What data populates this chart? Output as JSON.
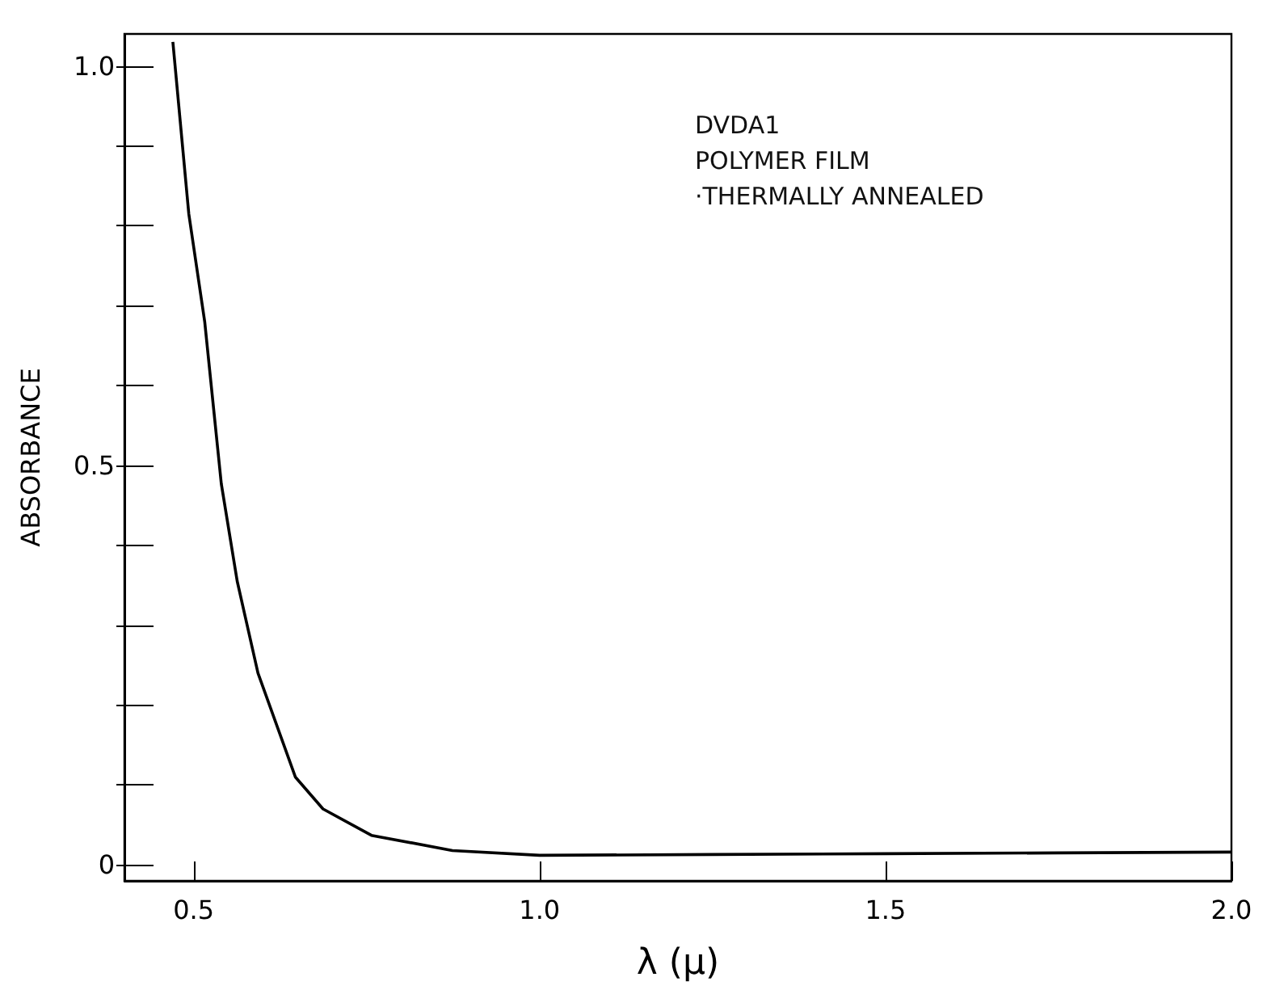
{
  "chart_data": {
    "type": "line",
    "xlabel": "λ (μ)",
    "ylabel": "ABSORBANCE",
    "annotations": [
      "DVDA1",
      "POLYMER FILM",
      "·THERMALLY ANNEALED"
    ],
    "series": [
      {
        "color": "#000000",
        "x": [
          0.47,
          0.493,
          0.516,
          0.54,
          0.563,
          0.593,
          0.647,
          0.687,
          0.757,
          0.874,
          1.0,
          1.25,
          1.5,
          1.75,
          2.0
        ],
        "values": [
          1.03,
          0.815,
          0.68,
          0.477,
          0.355,
          0.24,
          0.11,
          0.07,
          0.037,
          0.018,
          0.012,
          0.013,
          0.014,
          0.015,
          0.016
        ]
      }
    ],
    "xlim": [
      0.4,
      2.0
    ],
    "xticks": [
      0.5,
      {
        "value": 1,
        "label": "1.0"
      },
      1.5,
      {
        "value": 2,
        "label": "2.0"
      }
    ],
    "ylim": [
      -0.02,
      1.04
    ],
    "yticks": [
      {
        "value": 0,
        "label": "0"
      },
      {
        "value": 0.1,
        "label": null
      },
      {
        "value": 0.2,
        "label": null
      },
      {
        "value": 0.3,
        "label": null
      },
      {
        "value": 0.4,
        "label": null
      },
      0.5,
      {
        "value": 0.6,
        "label": null
      },
      {
        "value": 0.7,
        "label": null
      },
      {
        "value": 0.8,
        "label": null
      },
      {
        "value": 0.9,
        "label": null
      },
      {
        "value": 1,
        "label": "1.0"
      }
    ],
    "grid": false,
    "marker": "none",
    "line_style": "solid"
  }
}
